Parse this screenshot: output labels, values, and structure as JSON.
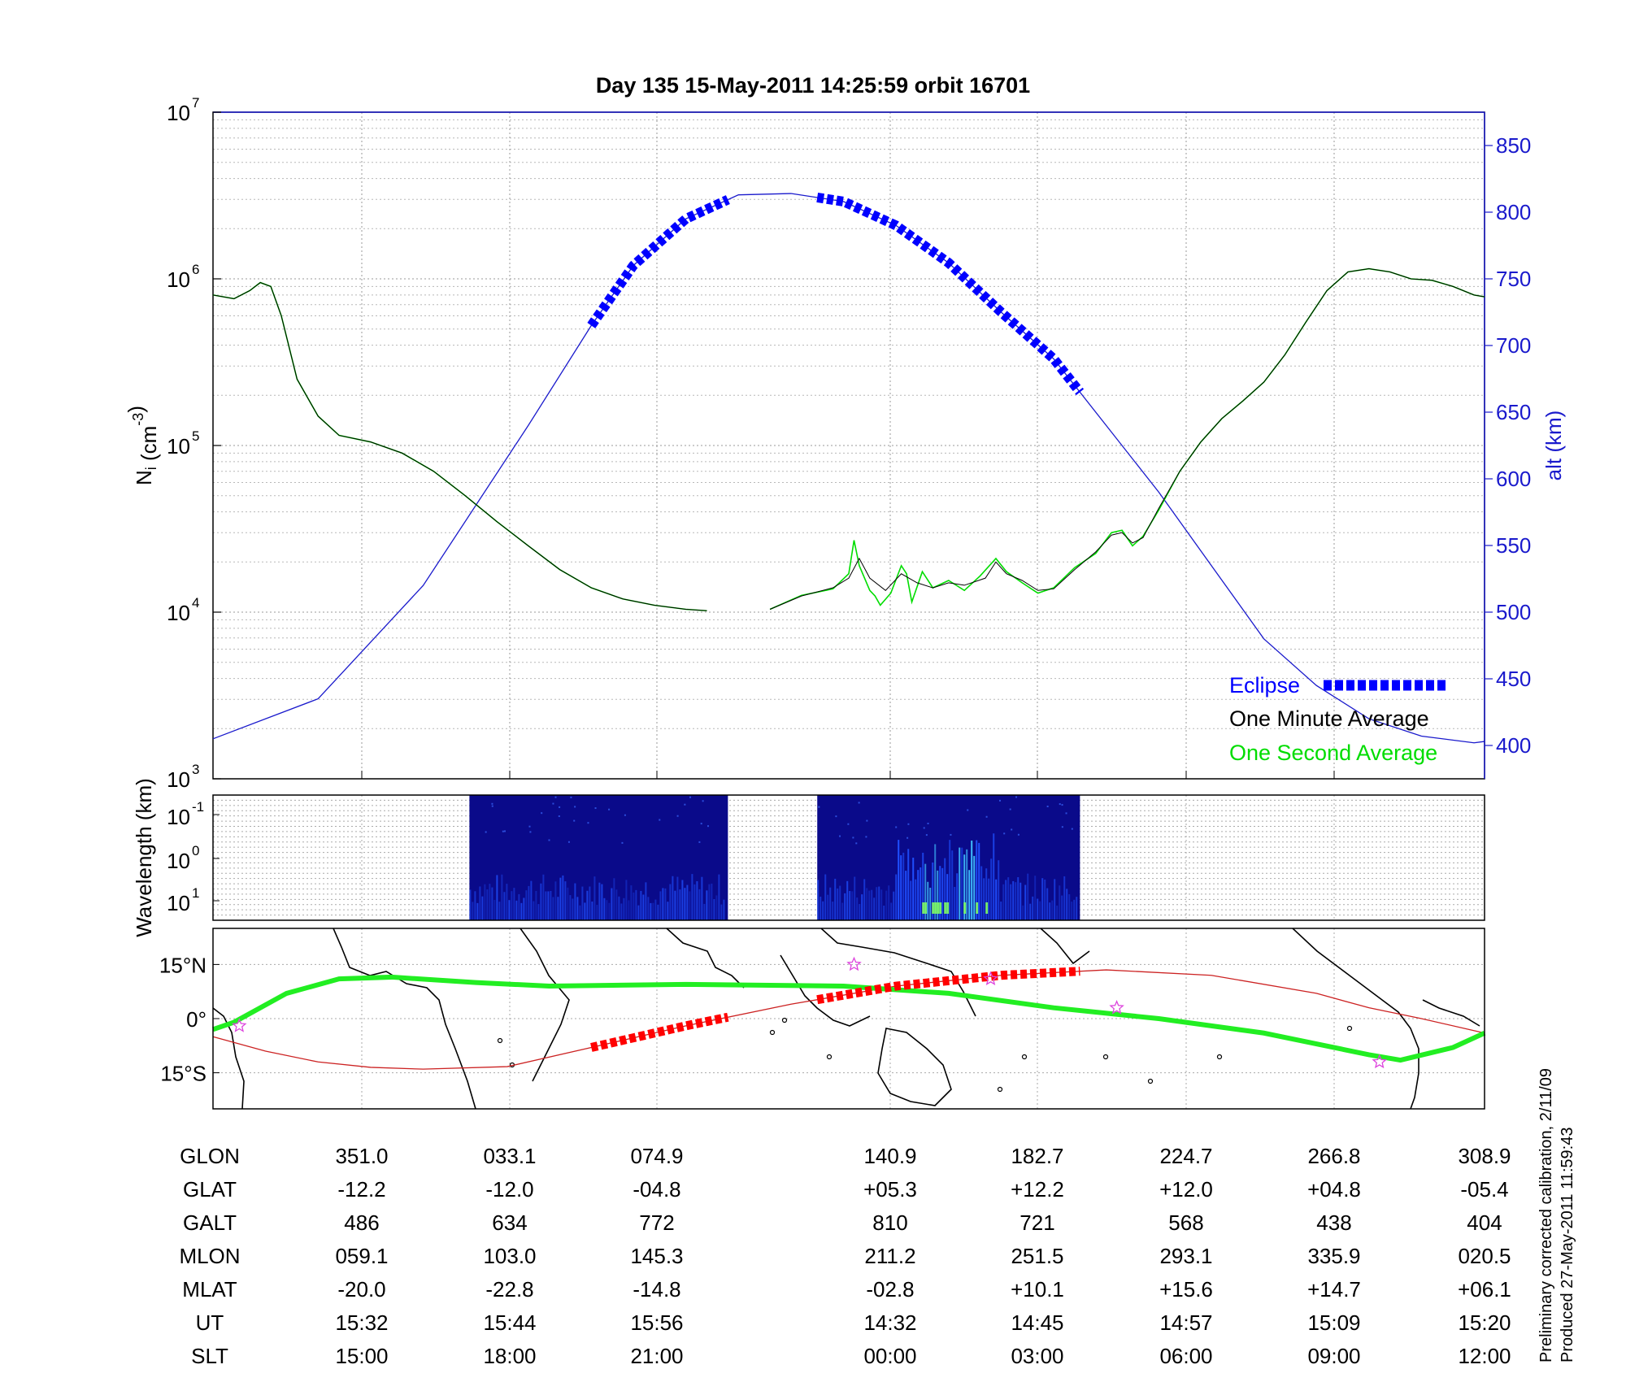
{
  "title": "Day 135  15-May-2011 14:25:59   orbit 16701",
  "colors": {
    "altitude": "#1a1acc",
    "eclipse": "#0000ff",
    "one_minute": "#000000",
    "one_second": "#00dd00",
    "ground_track": "#22ee22",
    "dip_equator": "#cc2222",
    "eclipse_track": "#ff0000",
    "star": "#dd44dd",
    "spectrogram_bg": "#0a0a8a"
  },
  "notes": {
    "line1": "Preliminary corrected calibration, 2/11/09",
    "line2": "Produced 27-May-2011 11:59:43"
  },
  "chart_data": [
    {
      "type": "line",
      "panel": "ion density and altitude",
      "ylabel": "Ni (cm-3)",
      "ylabel_main": "N",
      "ylabel_sub": "i",
      "ylabel_unit_pre": "(cm",
      "ylabel_unit_sup": "-3",
      "ylabel_unit_post": ")",
      "y_scale": "log",
      "ylim": [
        1000,
        10000000
      ],
      "y_tick_base": "10",
      "y_tick_exponents": [
        "3",
        "4",
        "5",
        "6",
        "7"
      ],
      "y2label": "alt (km)",
      "y2lim": [
        375,
        875
      ],
      "y2_ticks": [
        "400",
        "450",
        "500",
        "550",
        "600",
        "650",
        "700",
        "750",
        "800",
        "850"
      ],
      "x_ticks_ut": [
        "15:32",
        "15:44",
        "15:56",
        "14:32",
        "14:45",
        "14:57",
        "15:09",
        "15:20"
      ],
      "grid": true,
      "legend_position": "bottom-right",
      "series": [
        {
          "name": "One Minute Average",
          "segments": [
            [
              [
                0,
                800000
              ],
              [
                0.2,
                760000
              ],
              [
                0.35,
                850000
              ],
              [
                0.45,
                950000
              ],
              [
                0.55,
                900000
              ],
              [
                0.65,
                600000
              ],
              [
                0.8,
                250000
              ],
              [
                1.0,
                150000
              ],
              [
                1.2,
                115000
              ],
              [
                1.5,
                105000
              ],
              [
                1.8,
                90000
              ],
              [
                2.1,
                70000
              ],
              [
                2.4,
                50000
              ],
              [
                2.7,
                35000
              ],
              [
                3.0,
                25000
              ],
              [
                3.3,
                18000
              ],
              [
                3.6,
                14000
              ],
              [
                3.9,
                12000
              ],
              [
                4.2,
                11000
              ],
              [
                4.5,
                10400
              ],
              [
                4.7,
                10200
              ]
            ],
            [
              [
                5.3,
                10400
              ],
              [
                5.6,
                12500
              ],
              [
                5.9,
                14000
              ],
              [
                6.05,
                16000
              ],
              [
                6.15,
                21000
              ],
              [
                6.25,
                16000
              ],
              [
                6.4,
                13500
              ],
              [
                6.55,
                17000
              ],
              [
                6.7,
                15000
              ],
              [
                6.85,
                14000
              ],
              [
                7.0,
                15000
              ],
              [
                7.15,
                14500
              ],
              [
                7.35,
                16000
              ],
              [
                7.45,
                20000
              ],
              [
                7.55,
                17000
              ],
              [
                7.7,
                15500
              ],
              [
                7.85,
                13500
              ],
              [
                8.0,
                13800
              ],
              [
                8.2,
                18000
              ],
              [
                8.4,
                23000
              ],
              [
                8.55,
                29000
              ],
              [
                8.65,
                30000
              ],
              [
                8.75,
                26000
              ],
              [
                8.85,
                28000
              ],
              [
                9.0,
                42000
              ],
              [
                9.2,
                70000
              ],
              [
                9.4,
                105000
              ],
              [
                9.6,
                145000
              ],
              [
                9.8,
                185000
              ],
              [
                10.0,
                240000
              ],
              [
                10.2,
                350000
              ],
              [
                10.4,
                550000
              ],
              [
                10.6,
                850000
              ],
              [
                10.8,
                1100000
              ],
              [
                11.0,
                1150000
              ],
              [
                11.2,
                1100000
              ],
              [
                11.4,
                1000000
              ],
              [
                11.6,
                980000
              ],
              [
                11.8,
                900000
              ],
              [
                12.0,
                800000
              ],
              [
                12.1,
                780000
              ]
            ]
          ]
        },
        {
          "name": "One Second Average",
          "segments": [
            [
              [
                0,
                800000
              ],
              [
                0.2,
                760000
              ],
              [
                0.35,
                850000
              ],
              [
                0.45,
                950000
              ],
              [
                0.55,
                900000
              ],
              [
                0.65,
                600000
              ],
              [
                0.8,
                250000
              ],
              [
                1.0,
                150000
              ],
              [
                1.2,
                115000
              ],
              [
                1.5,
                105000
              ],
              [
                1.8,
                90000
              ],
              [
                2.1,
                70000
              ],
              [
                2.4,
                50000
              ],
              [
                2.7,
                35000
              ],
              [
                3.0,
                25000
              ],
              [
                3.3,
                18000
              ],
              [
                3.6,
                14000
              ],
              [
                3.9,
                12000
              ],
              [
                4.2,
                11000
              ],
              [
                4.5,
                10400
              ],
              [
                4.7,
                10200
              ]
            ],
            [
              [
                5.3,
                10400
              ],
              [
                5.6,
                12600
              ],
              [
                5.9,
                13800
              ],
              [
                6.05,
                17000
              ],
              [
                6.1,
                27000
              ],
              [
                6.15,
                19000
              ],
              [
                6.25,
                13500
              ],
              [
                6.3,
                12500
              ],
              [
                6.35,
                11000
              ],
              [
                6.45,
                13000
              ],
              [
                6.55,
                19000
              ],
              [
                6.6,
                17000
              ],
              [
                6.65,
                11500
              ],
              [
                6.75,
                17500
              ],
              [
                6.85,
                14000
              ],
              [
                7.0,
                15500
              ],
              [
                7.15,
                13500
              ],
              [
                7.3,
                16500
              ],
              [
                7.45,
                21000
              ],
              [
                7.55,
                17500
              ],
              [
                7.7,
                15000
              ],
              [
                7.85,
                13000
              ],
              [
                8.0,
                14000
              ],
              [
                8.2,
                18500
              ],
              [
                8.4,
                22500
              ],
              [
                8.55,
                30000
              ],
              [
                8.65,
                31000
              ],
              [
                8.75,
                25000
              ],
              [
                8.85,
                28500
              ],
              [
                9.0,
                41000
              ],
              [
                9.2,
                70000
              ],
              [
                9.4,
                105000
              ],
              [
                9.6,
                145000
              ],
              [
                9.8,
                185000
              ],
              [
                10.0,
                240000
              ],
              [
                10.2,
                350000
              ],
              [
                10.4,
                550000
              ],
              [
                10.6,
                850000
              ],
              [
                10.8,
                1100000
              ],
              [
                11.0,
                1150000
              ],
              [
                11.2,
                1100000
              ],
              [
                11.4,
                1000000
              ],
              [
                11.6,
                980000
              ],
              [
                11.8,
                900000
              ],
              [
                12.0,
                800000
              ],
              [
                12.1,
                780000
              ]
            ]
          ]
        },
        {
          "name": "alt (km)",
          "axis": "right",
          "points": [
            [
              0,
              405
            ],
            [
              1,
              435
            ],
            [
              2,
              520
            ],
            [
              3,
              640
            ],
            [
              3.6,
              715
            ],
            [
              4.0,
              760
            ],
            [
              4.5,
              795
            ],
            [
              5.0,
              813
            ],
            [
              5.5,
              814
            ],
            [
              6.0,
              808
            ],
            [
              6.5,
              790
            ],
            [
              7.0,
              762
            ],
            [
              7.5,
              725
            ],
            [
              8.0,
              690
            ],
            [
              8.5,
              640
            ],
            [
              9.0,
              590
            ],
            [
              9.5,
              535
            ],
            [
              10.0,
              480
            ],
            [
              10.5,
              445
            ],
            [
              11.0,
              420
            ],
            [
              11.5,
              407
            ],
            [
              12.0,
              402
            ],
            [
              12.1,
              403
            ]
          ]
        },
        {
          "name": "Eclipse",
          "axis": "right",
          "segments": [
            [
              3.6,
              4.9
            ],
            [
              5.75,
              8.25
            ]
          ]
        }
      ]
    },
    {
      "type": "heatmap",
      "panel": "spectrogram",
      "ylabel": "Wavelength (km)",
      "y_tick_base": "10",
      "y_tick_exponents": [
        "-1",
        "0",
        "1"
      ],
      "data_segments": [
        [
          2.44,
          4.9
        ],
        [
          5.75,
          8.25
        ]
      ]
    },
    {
      "type": "line",
      "panel": "ground track map",
      "ylim": [
        -25,
        25
      ],
      "y_ticks": [
        "15°N",
        "0°",
        "15°S"
      ],
      "y_tick_values": [
        15,
        0,
        -15
      ],
      "series": [
        {
          "name": "ground track",
          "points": [
            [
              0,
              -3
            ],
            [
              0.2,
              -1
            ],
            [
              0.7,
              7
            ],
            [
              1.2,
              11
            ],
            [
              1.7,
              11.5
            ],
            [
              2.5,
              10
            ],
            [
              3.2,
              9
            ],
            [
              4.5,
              9.5
            ],
            [
              6.0,
              9
            ],
            [
              7.0,
              7
            ],
            [
              8.0,
              3
            ],
            [
              9.0,
              0
            ],
            [
              10.0,
              -4
            ],
            [
              11.0,
              -10
            ],
            [
              11.3,
              -11.5
            ],
            [
              11.8,
              -8
            ],
            [
              12.1,
              -4
            ]
          ]
        },
        {
          "name": "dip equator",
          "points": [
            [
              0,
              -5
            ],
            [
              0.5,
              -9
            ],
            [
              1.0,
              -12
            ],
            [
              1.5,
              -13.5
            ],
            [
              2.0,
              -14
            ],
            [
              2.8,
              -13.3
            ],
            [
              3.6,
              -8
            ],
            [
              4.5,
              -2
            ],
            [
              5.5,
              4
            ],
            [
              6.5,
              9
            ],
            [
              7.5,
              12
            ],
            [
              8.5,
              13.5
            ],
            [
              9.5,
              12
            ],
            [
              10.5,
              7
            ],
            [
              11.0,
              3
            ],
            [
              11.5,
              0
            ],
            [
              12.1,
              -4
            ]
          ]
        },
        {
          "name": "eclipse track",
          "segments": [
            [
              3.6,
              4.9
            ],
            [
              5.75,
              8.25
            ]
          ]
        },
        {
          "name": "stars",
          "points": [
            [
              0.25,
              -2
            ],
            [
              6.1,
              15
            ],
            [
              7.4,
              11
            ],
            [
              8.6,
              3
            ],
            [
              11.1,
              -12
            ]
          ]
        }
      ]
    }
  ],
  "table": {
    "row_labels": [
      "GLON",
      "GLAT",
      "GALT",
      "MLON",
      "MLAT",
      "UT",
      "SLT"
    ],
    "columns": [
      [
        "351.0",
        "-12.2",
        "486",
        "059.1",
        "-20.0",
        "15:32",
        "15:00"
      ],
      [
        "033.1",
        "-12.0",
        "634",
        "103.0",
        "-22.8",
        "15:44",
        "18:00"
      ],
      [
        "074.9",
        "-04.8",
        "772",
        "145.3",
        "-14.8",
        "15:56",
        "21:00"
      ],
      [
        "140.9",
        "+05.3",
        "810",
        "211.2",
        "-02.8",
        "14:32",
        "00:00"
      ],
      [
        "182.7",
        "+12.2",
        "721",
        "251.5",
        "+10.1",
        "14:45",
        "03:00"
      ],
      [
        "224.7",
        "+12.0",
        "568",
        "293.1",
        "+15.6",
        "14:57",
        "06:00"
      ],
      [
        "266.8",
        "+04.8",
        "438",
        "335.9",
        "+14.7",
        "15:09",
        "09:00"
      ],
      [
        "308.9",
        "-05.4",
        "404",
        "020.5",
        "+06.1",
        "15:20",
        "12:00"
      ]
    ]
  }
}
